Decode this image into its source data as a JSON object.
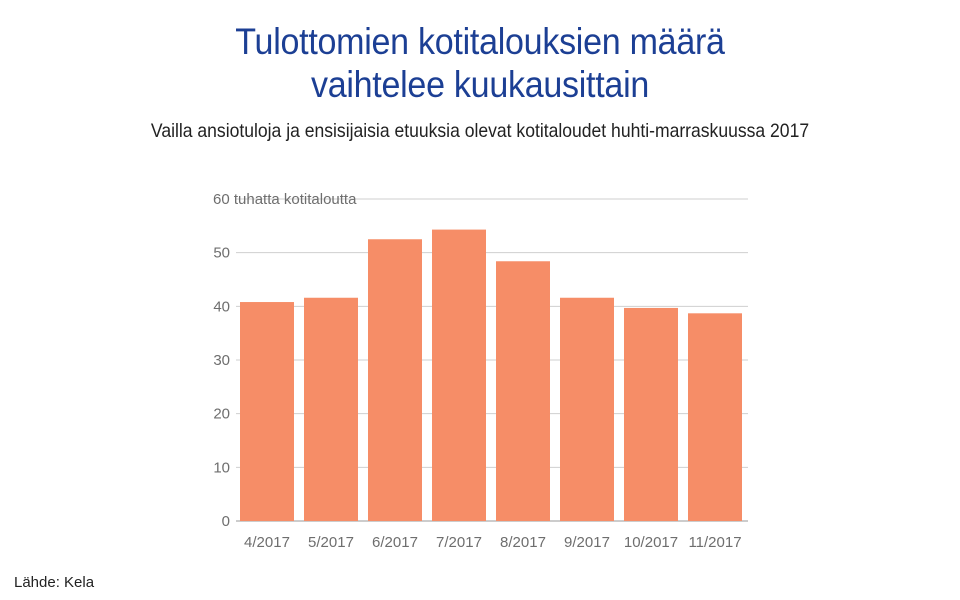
{
  "chart_data": {
    "type": "bar",
    "title_lines": [
      "Tulottomien kotitalouksien määrä",
      "vaihtelee kuukausittain"
    ],
    "subtitle": "Vailla ansiotuloja ja ensisijaisia etuuksia olevat kotitaloudet huhti-marraskuussa 2017",
    "ylabel": "60 tuhatta kotitaloutta",
    "categories": [
      "4/2017",
      "5/2017",
      "6/2017",
      "7/2017",
      "8/2017",
      "9/2017",
      "10/2017",
      "11/2017"
    ],
    "values": [
      40.8,
      41.6,
      52.5,
      54.3,
      48.4,
      41.6,
      39.7,
      38.7
    ],
    "ylim": [
      0,
      60
    ],
    "yticks": [
      0,
      10,
      20,
      30,
      40,
      50
    ],
    "grid": true,
    "bar_color": "#f68d67",
    "source": "Lähde: Kela"
  }
}
